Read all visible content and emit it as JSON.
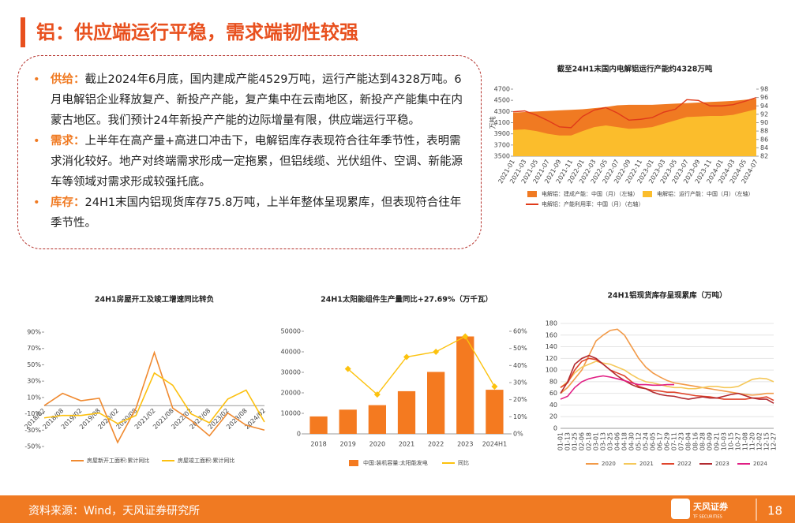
{
  "header": {
    "title": "铝：供应端运行平稳，需求端韧性较强"
  },
  "bullets": [
    {
      "label": "供给：",
      "text": "截止2024年6月底，国内建成产能4529万吨，运行产能达到4328万吨。6 月电解铝企业释放复产、新投产产能，复产集中在云南地区，新投产产能集中在内蒙古地区。我们预计24年新投产产能的边际增量有限，供应端运行平稳。"
    },
    {
      "label": "需求：",
      "text": "上半年在高产量+高进口冲击下，电解铝库存表现符合往年季节性，表明需求消化较好。地产对终端需求形成一定拖累，但铝线缆、光伏组件、空调、新能源车等领域对需求形成较强托底。"
    },
    {
      "label": "库存：",
      "text": "24H1末国内铝现货库存75.8万吨，上半年整体呈现累库，但表现符合往年季节性。"
    }
  ],
  "chart_data": [
    {
      "type": "area",
      "title": "截至24H1末国内电解铝运行产能约4328万吨",
      "ylabel": "万吨",
      "categories": [
        "2021-01",
        "2021-03",
        "2021-05",
        "2021-07",
        "2021-09",
        "2021-11",
        "2022-01",
        "2022-03",
        "2022-05",
        "2022-07",
        "2022-09",
        "2022-11",
        "2023-01",
        "2023-03",
        "2023-05",
        "2023-07",
        "2023-09",
        "2023-11",
        "2024-01",
        "2024-03",
        "2024-05",
        "2024-07"
      ],
      "series": [
        {
          "name": "电解铝：建成产能：中国（月）（左轴）",
          "color": "#f07a22",
          "values": [
            4280,
            4290,
            4300,
            4310,
            4320,
            4330,
            4340,
            4360,
            4380,
            4410,
            4420,
            4420,
            4420,
            4430,
            4440,
            4450,
            4460,
            4470,
            4480,
            4490,
            4510,
            4530
          ]
        },
        {
          "name": "电解铝：运行产能：中国（月）（左轴）",
          "color": "#fbbd2c",
          "values": [
            3970,
            3980,
            3950,
            3900,
            3870,
            3870,
            3950,
            4020,
            4050,
            4020,
            3990,
            4000,
            4020,
            4080,
            4140,
            4200,
            4210,
            4220,
            4220,
            4240,
            4290,
            4340
          ]
        },
        {
          "name": "电解铝：产能利用率：中国（月）（右轴）",
          "color": "#e03a1a",
          "axis": "y2",
          "values": [
            92.6,
            92.8,
            91.8,
            90.5,
            89.0,
            88.8,
            91.5,
            93.0,
            93.6,
            92.3,
            90.6,
            90.8,
            91.2,
            92.5,
            93.2,
            95.5,
            95.3,
            94.0,
            94.0,
            94.3,
            95.1,
            96.0
          ]
        }
      ],
      "ylim": [
        3500,
        4700
      ],
      "yticks": [
        3500,
        3700,
        3900,
        4100,
        4300,
        4500,
        4700
      ],
      "y2lim": [
        82,
        98
      ],
      "y2ticks": [
        82,
        84,
        86,
        88,
        90,
        92,
        94,
        96,
        98
      ],
      "grid": false
    },
    {
      "type": "line",
      "title": "24H1房屋开工及竣工增速同比转负",
      "categories": [
        "2018/02",
        "2018/08",
        "2019/02",
        "2019/08",
        "2020/02",
        "2020/08",
        "2021/02",
        "2021/08",
        "2022/02",
        "2022/08",
        "2023/02",
        "2023/08",
        "2024/02"
      ],
      "series": [
        {
          "name": "房屋新开工面积:累计同比",
          "color": "#f08a30",
          "values": [
            0,
            15,
            6,
            9,
            -45,
            -3,
            65,
            -3,
            -18,
            -37,
            -9,
            -24,
            -30
          ]
        },
        {
          "name": "房屋竣工面积:累计同比",
          "color": "#fcc010",
          "values": [
            -15,
            -12,
            -12,
            -9,
            -22,
            -12,
            40,
            25,
            -10,
            -21,
            8,
            19,
            -20
          ]
        }
      ],
      "ylim": [
        -50,
        90
      ],
      "yticks": [
        {
          "value": -50,
          "label": "-50%"
        },
        {
          "value": -30,
          "label": "-30%"
        },
        {
          "value": -10,
          "label": "-10%"
        },
        {
          "value": 10,
          "label": "10%"
        },
        {
          "value": 30,
          "label": "30%"
        },
        {
          "value": 50,
          "label": "50%"
        },
        {
          "value": 70,
          "label": "70%"
        },
        {
          "value": 90,
          "label": "90%"
        }
      ],
      "grid": false
    },
    {
      "type": "bar",
      "title": "24H1太阳能组件生产量同比+27.69%（万千瓦）",
      "categories": [
        "2018",
        "2019",
        "2020",
        "2021",
        "2022",
        "2023",
        "2024H1"
      ],
      "series": [
        {
          "name": "中国:装机容量:太阳能发电",
          "color": "#f47a20",
          "values": [
            8500,
            11800,
            14000,
            20800,
            30200,
            47500,
            21500
          ]
        },
        {
          "name": "同比",
          "color": "#fcc20e",
          "axis": "y2",
          "values": [
            null,
            38,
            23,
            45,
            48,
            57,
            27.69
          ]
        }
      ],
      "ylim": [
        0,
        50000
      ],
      "yticks": [
        0,
        10000,
        20000,
        30000,
        40000,
        50000
      ],
      "y2lim": [
        0,
        60
      ],
      "y2ticks": [
        {
          "value": 0,
          "label": "0%"
        },
        {
          "value": 10,
          "label": "10%"
        },
        {
          "value": 20,
          "label": "20%"
        },
        {
          "value": 30,
          "label": "30%"
        },
        {
          "value": 40,
          "label": "40%"
        },
        {
          "value": 50,
          "label": "50%"
        },
        {
          "value": 60,
          "label": "60%"
        }
      ],
      "grid": false
    },
    {
      "type": "line",
      "title": "24H1铝现货库存呈现累库（万吨）",
      "categories": [
        "01-01",
        "01-13",
        "01-25",
        "02-06",
        "02-18",
        "03-01",
        "03-13",
        "03-25",
        "04-06",
        "04-18",
        "04-30",
        "05-12",
        "05-24",
        "06-05",
        "06-17",
        "06-29",
        "07-11",
        "07-23",
        "08-04",
        "08-16",
        "08-28",
        "09-09",
        "09-21",
        "10-03",
        "10-15",
        "10-27",
        "11-08",
        "11-20",
        "12-02",
        "12-15",
        "12-27"
      ],
      "series": [
        {
          "name": "2020",
          "color": "#f29a48",
          "values": [
            60,
            70,
            85,
            100,
            125,
            150,
            160,
            168,
            170,
            160,
            140,
            120,
            105,
            95,
            88,
            82,
            78,
            76,
            74,
            72,
            70,
            68,
            66,
            64,
            62,
            60,
            58,
            57,
            58,
            60,
            60
          ]
        },
        {
          "name": "2021",
          "color": "#f5c85a",
          "values": [
            70,
            80,
            95,
            105,
            110,
            115,
            112,
            110,
            105,
            100,
            92,
            85,
            80,
            78,
            75,
            72,
            70,
            70,
            68,
            68,
            70,
            72,
            72,
            70,
            70,
            72,
            78,
            84,
            86,
            85,
            80
          ]
        },
        {
          "name": "2022",
          "color": "#e0452c",
          "values": [
            70,
            78,
            100,
            115,
            120,
            118,
            110,
            100,
            95,
            90,
            80,
            72,
            68,
            65,
            64,
            62,
            62,
            60,
            58,
            56,
            55,
            54,
            52,
            50,
            50,
            50,
            50,
            52,
            52,
            54,
            48
          ]
        },
        {
          "name": "2023",
          "color": "#b22a30",
          "values": [
            60,
            80,
            110,
            120,
            125,
            120,
            110,
            100,
            90,
            82,
            75,
            70,
            68,
            62,
            58,
            56,
            55,
            52,
            50,
            52,
            54,
            52,
            52,
            55,
            58,
            60,
            56,
            52,
            50,
            50,
            43
          ]
        },
        {
          "name": "2024",
          "color": "#e01e84",
          "values": [
            50,
            55,
            70,
            80,
            85,
            88,
            90,
            88,
            85,
            82,
            78,
            75,
            75,
            74,
            74,
            75,
            75,
            null,
            null,
            null,
            null,
            null,
            null,
            null,
            null,
            null,
            null,
            null,
            null,
            null,
            null
          ]
        }
      ],
      "ylim": [
        0,
        180
      ],
      "yticks": [
        0,
        20,
        40,
        60,
        80,
        100,
        120,
        140,
        160,
        180
      ],
      "grid": true
    }
  ],
  "footer": {
    "source": "资料来源：Wind，天风证券研究所",
    "logo": "天风证券",
    "logo_en": "TF SECURITIES",
    "page": "18"
  }
}
